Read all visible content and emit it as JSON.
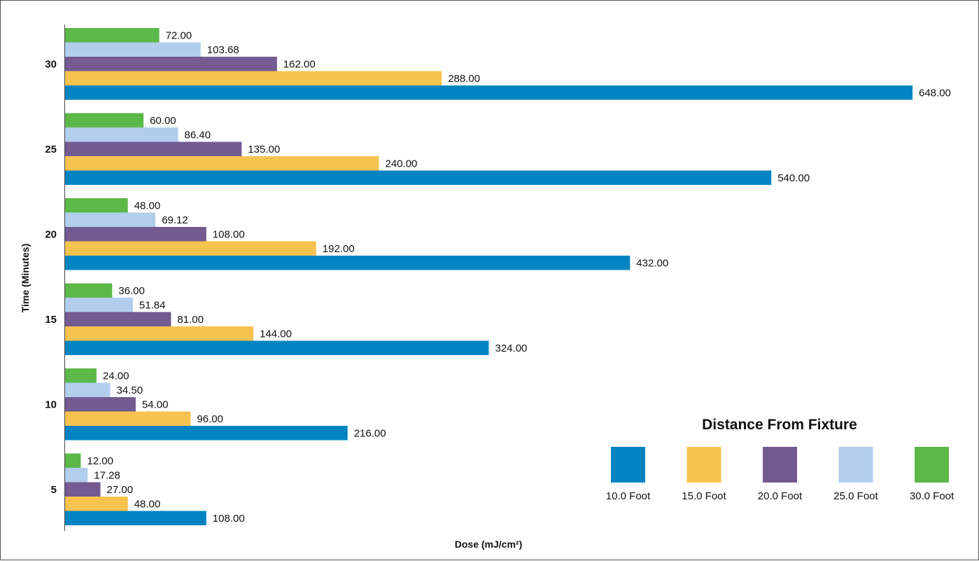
{
  "chart_data": {
    "type": "bar",
    "orientation": "horizontal",
    "categories": [
      "5",
      "10",
      "15",
      "20",
      "25",
      "30"
    ],
    "xlabel": "Dose (mJ/cm²)",
    "ylabel": "Time (Minutes)",
    "xlim": [
      0,
      700
    ],
    "grid": false,
    "legend": {
      "title": "Distance From Fixture",
      "position": "bottom-right"
    },
    "series": [
      {
        "name": "10.0 Foot",
        "color": "#0284C2",
        "values": [
          108,
          216,
          324,
          432,
          540,
          648
        ],
        "labels": [
          "108.00",
          "216.00",
          "324.00",
          "432.00",
          "540.00",
          "648.00"
        ]
      },
      {
        "name": "15.0 Foot",
        "color": "#F7C34F",
        "values": [
          48,
          96,
          144,
          192,
          240,
          288
        ],
        "labels": [
          "48.00",
          "96.00",
          "144.00",
          "192.00",
          "240.00",
          "288.00"
        ]
      },
      {
        "name": "20.0 Foot",
        "color": "#735A91",
        "values": [
          27,
          54,
          81,
          108,
          135,
          162
        ],
        "labels": [
          "27.00",
          "54.00",
          "81.00",
          "108.00",
          "135.00",
          "162.00"
        ]
      },
      {
        "name": "25.0 Foot",
        "color": "#B1CFEC",
        "values": [
          17.28,
          34.5,
          51.84,
          69.12,
          86.4,
          103.68
        ],
        "labels": [
          "17.28",
          "34.50",
          "51.84",
          "69.12",
          "86.40",
          "103.68"
        ]
      },
      {
        "name": "30.0 Foot",
        "color": "#5DB84A",
        "values": [
          12,
          24,
          36,
          48,
          60,
          72
        ],
        "labels": [
          "12.00",
          "24.00",
          "36.00",
          "48.00",
          "60.00",
          "72.00"
        ]
      }
    ]
  }
}
